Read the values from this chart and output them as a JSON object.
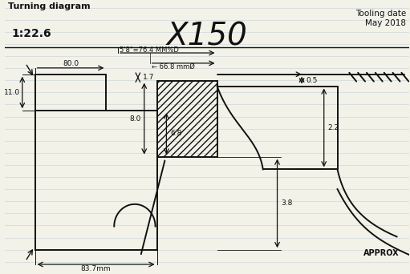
{
  "title": "X150",
  "subtitle_left": "Turning diagram",
  "scale": "1:22.6",
  "tooling_date_line1": "Tooling date",
  "tooling_date_line2": "May 2018",
  "approx": "APPROX",
  "bg_color": "#f2f2e8",
  "line_color": "#111111",
  "dim_80": "80.0",
  "dim_11": "11.0",
  "dim_17": "1.7",
  "dim_05": "0.5",
  "dim_22": "2.2",
  "dim_80v": "8.0",
  "dim_68": "6.8",
  "dim_38": "3.8",
  "dim_837": "83.7mm",
  "dim_58": "5'8\"=76.4 MM%D",
  "dim_668": "← 66.8 mmØ",
  "notebook_lines": 22,
  "notebook_line_color": "#c0ccd8",
  "notebook_line_alpha": 0.55
}
